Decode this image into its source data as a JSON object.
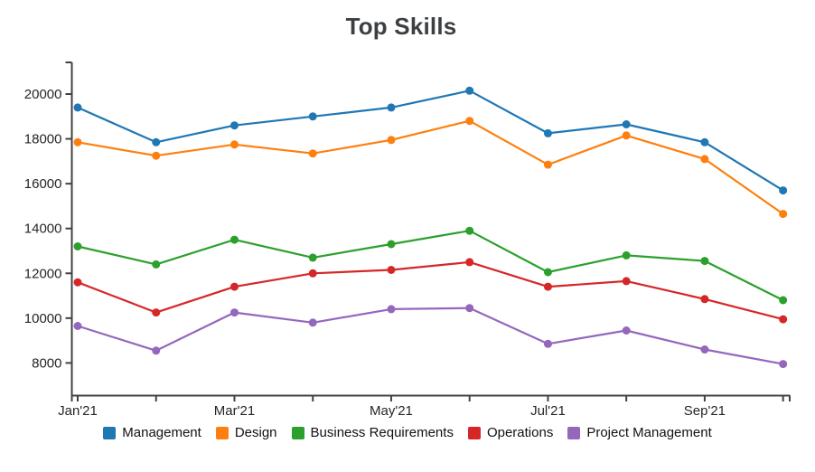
{
  "chart_data": {
    "type": "line",
    "title": "Top Skills",
    "xlabel": "",
    "ylabel": "",
    "x_tick_labels": [
      "Jan'21",
      "Mar'21",
      "May'21",
      "Jul'21",
      "Sep'21"
    ],
    "x_tick_indices": [
      0,
      2,
      4,
      6,
      8
    ],
    "num_points": 10,
    "y_ticks": [
      8000,
      10000,
      12000,
      14000,
      16000,
      18000,
      20000
    ],
    "ylim": [
      6550,
      21400
    ],
    "grid": false,
    "legend_position": "bottom",
    "axis_color": "#424242",
    "tick_label_color": "#262626",
    "series": [
      {
        "name": "Management",
        "color": "#1f77b4",
        "values": [
          19400,
          17850,
          18600,
          19000,
          19400,
          20150,
          18250,
          18650,
          17850,
          15700
        ]
      },
      {
        "name": "Design",
        "color": "#ff7f0e",
        "values": [
          17850,
          17250,
          17750,
          17350,
          17950,
          18800,
          16850,
          18150,
          17100,
          14650
        ]
      },
      {
        "name": "Business Requirements",
        "color": "#2ca02c",
        "values": [
          13200,
          12400,
          13500,
          12700,
          13300,
          13900,
          12050,
          12800,
          12550,
          10800
        ]
      },
      {
        "name": "Operations",
        "color": "#d62728",
        "values": [
          11600,
          10250,
          11400,
          12000,
          12150,
          12500,
          11400,
          11650,
          10850,
          9950
        ]
      },
      {
        "name": "Project Management",
        "color": "#9467bd",
        "values": [
          9650,
          8550,
          10250,
          9800,
          10400,
          10450,
          8850,
          9450,
          8600,
          7950
        ]
      }
    ]
  }
}
